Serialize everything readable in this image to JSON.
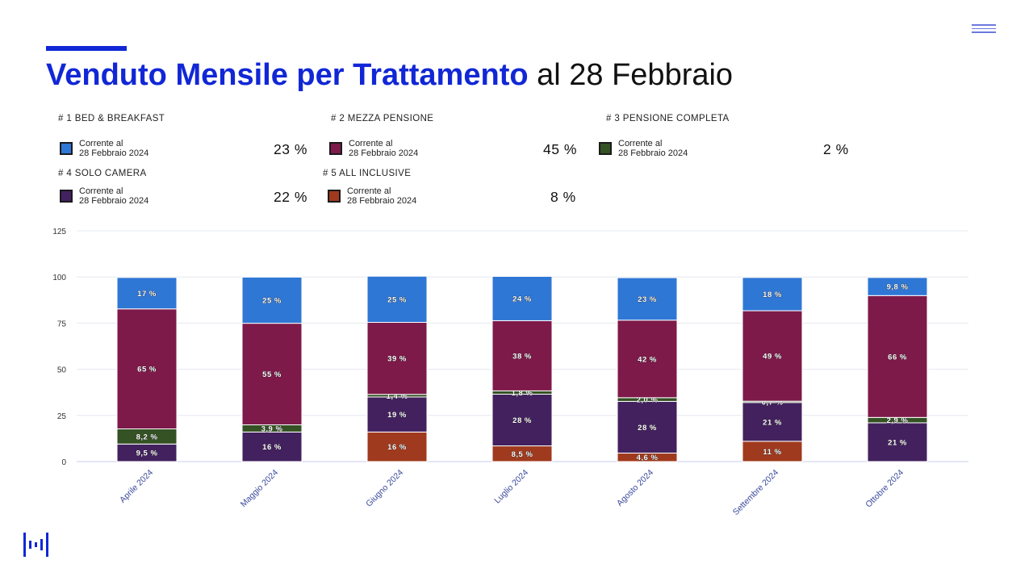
{
  "title": {
    "bold": "Venduto Mensile per Trattamento",
    "rest": "al 28 Febbraio"
  },
  "legend": [
    {
      "head": "# 1 BED & BREAKFAST",
      "line1": "Corrente al",
      "line2": "28 Febbraio 2024",
      "pct": "23 %",
      "color": "#2f77d5"
    },
    {
      "head": "# 2 MEZZA PENSIONE",
      "line1": "Corrente al",
      "line2": "28 Febbraio 2024",
      "pct": "45 %",
      "color": "#7d1a49"
    },
    {
      "head": "# 3 PENSIONE COMPLETA",
      "line1": "Corrente al",
      "line2": "28 Febbraio 2024",
      "pct": "2 %",
      "color": "#345224"
    },
    {
      "head": "# 4 SOLO CAMERA",
      "line1": "Corrente al",
      "line2": "28 Febbraio 2024",
      "pct": "22 %",
      "color": "#43215e"
    },
    {
      "head": "# 5 ALL INCLUSIVE",
      "line1": "Corrente al",
      "line2": "28 Febbraio 2024",
      "pct": "8 %",
      "color": "#a03a1e"
    }
  ],
  "chart_data": {
    "type": "bar",
    "stacked": true,
    "ylim": [
      0,
      125
    ],
    "yticks": [
      0,
      25,
      50,
      75,
      100,
      125
    ],
    "grid": true,
    "categories": [
      "Aprile 2024",
      "Maggio 2024",
      "Giugno 2024",
      "Luglio 2024",
      "Agosto 2024",
      "Settembre 2024",
      "Ottobre 2024"
    ],
    "series": [
      {
        "name": "All Inclusive",
        "color": "#a03a1e",
        "values": [
          0,
          0,
          16,
          8.5,
          4.6,
          11,
          0
        ],
        "labels": [
          "",
          "",
          "16 %",
          "8,5 %",
          "4,6 %",
          "11 %",
          "–"
        ]
      },
      {
        "name": "Solo Camera",
        "color": "#43215e",
        "values": [
          9.5,
          16,
          19,
          28,
          28,
          21,
          21
        ],
        "labels": [
          "9,5 %",
          "16 %",
          "19 %",
          "28 %",
          "28 %",
          "21 %",
          "21 %"
        ]
      },
      {
        "name": "Pensione Completa",
        "color": "#345224",
        "values": [
          8.2,
          3.9,
          1.4,
          1.8,
          2.0,
          0.7,
          2.9
        ],
        "labels": [
          "8,2 %",
          "3,9 %",
          "1,4 %",
          "1,8 %",
          "2,0 %",
          "0,7 %",
          "2,9 %"
        ]
      },
      {
        "name": "Mezza Pensione",
        "color": "#7d1a49",
        "values": [
          65,
          55,
          39,
          38,
          42,
          49,
          66
        ],
        "labels": [
          "65 %",
          "55 %",
          "39 %",
          "38 %",
          "42 %",
          "49 %",
          "66 %"
        ]
      },
      {
        "name": "Bed & Breakfast",
        "color": "#2f77d5",
        "values": [
          17,
          25,
          25,
          24,
          23,
          18,
          9.8
        ],
        "labels": [
          "17 %",
          "25 %",
          "25 %",
          "24 %",
          "23 %",
          "18 %",
          "9,8 %"
        ]
      }
    ]
  }
}
